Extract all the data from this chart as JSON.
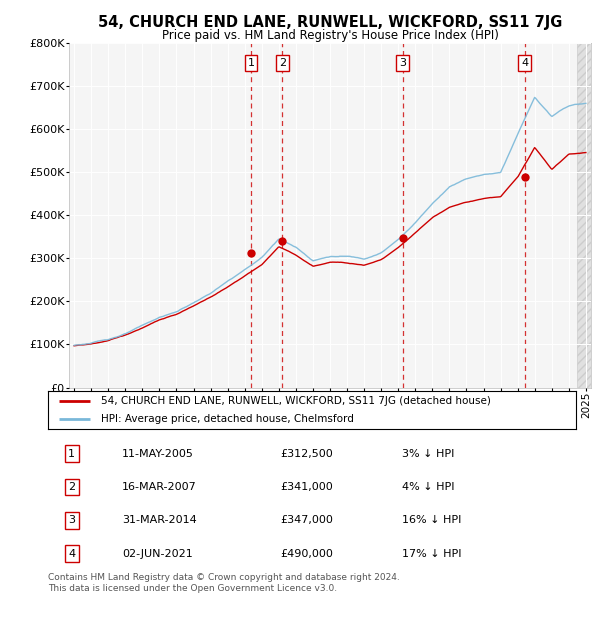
{
  "title": "54, CHURCH END LANE, RUNWELL, WICKFORD, SS11 7JG",
  "subtitle": "Price paid vs. HM Land Registry's House Price Index (HPI)",
  "hpi_label": "HPI: Average price, detached house, Chelmsford",
  "property_label": "54, CHURCH END LANE, RUNWELL, WICKFORD, SS11 7JG (detached house)",
  "footer": "Contains HM Land Registry data © Crown copyright and database right 2024.\nThis data is licensed under the Open Government Licence v3.0.",
  "transactions": [
    {
      "num": 1,
      "date": "11-MAY-2005",
      "price": 312500,
      "year": 2005.36,
      "hpi_diff": "3% ↓ HPI"
    },
    {
      "num": 2,
      "date": "16-MAR-2007",
      "price": 341000,
      "year": 2007.21,
      "hpi_diff": "4% ↓ HPI"
    },
    {
      "num": 3,
      "date": "31-MAR-2014",
      "price": 347000,
      "year": 2014.25,
      "hpi_diff": "16% ↓ HPI"
    },
    {
      "num": 4,
      "date": "02-JUN-2021",
      "price": 490000,
      "year": 2021.42,
      "hpi_diff": "17% ↓ HPI"
    }
  ],
  "hpi_color": "#7ab8d9",
  "price_color": "#cc0000",
  "vline_color": "#cc0000",
  "background_plot": "#f0f0f0",
  "ylim": [
    0,
    800000
  ],
  "yticks": [
    0,
    100000,
    200000,
    300000,
    400000,
    500000,
    600000,
    700000,
    800000
  ],
  "xlim_start": 1994.7,
  "xlim_end": 2025.3,
  "xticks": [
    1995,
    1996,
    1997,
    1998,
    1999,
    2000,
    2001,
    2002,
    2003,
    2004,
    2005,
    2006,
    2007,
    2008,
    2009,
    2010,
    2011,
    2012,
    2013,
    2014,
    2015,
    2016,
    2017,
    2018,
    2019,
    2020,
    2021,
    2022,
    2023,
    2024,
    2025
  ],
  "hpi_anchor_years": [
    1995,
    1996,
    1997,
    1998,
    1999,
    2000,
    2001,
    2002,
    2003,
    2004,
    2005,
    2006,
    2007,
    2008,
    2009,
    2010,
    2011,
    2012,
    2013,
    2014,
    2015,
    2016,
    2017,
    2018,
    2019,
    2020,
    2021,
    2022,
    2023,
    2024,
    2025
  ],
  "hpi_anchor_values": [
    98000,
    103000,
    112000,
    125000,
    143000,
    162000,
    175000,
    196000,
    218000,
    245000,
    272000,
    300000,
    345000,
    325000,
    295000,
    305000,
    305000,
    300000,
    315000,
    345000,
    385000,
    430000,
    470000,
    490000,
    500000,
    505000,
    595000,
    680000,
    635000,
    660000,
    665000
  ],
  "red_anchor_years": [
    1995,
    1996,
    1997,
    1998,
    1999,
    2000,
    2001,
    2002,
    2003,
    2004,
    2005,
    2006,
    2007,
    2008,
    2009,
    2010,
    2011,
    2012,
    2013,
    2014,
    2015,
    2016,
    2017,
    2018,
    2019,
    2020,
    2021,
    2022,
    2023,
    2024,
    2025
  ],
  "red_anchor_values": [
    97000,
    101000,
    109000,
    122000,
    138000,
    156000,
    168000,
    187000,
    208000,
    232000,
    258000,
    283000,
    325000,
    305000,
    278000,
    287000,
    287000,
    283000,
    297000,
    325000,
    360000,
    395000,
    420000,
    432000,
    440000,
    445000,
    490000,
    560000,
    510000,
    545000,
    550000
  ]
}
